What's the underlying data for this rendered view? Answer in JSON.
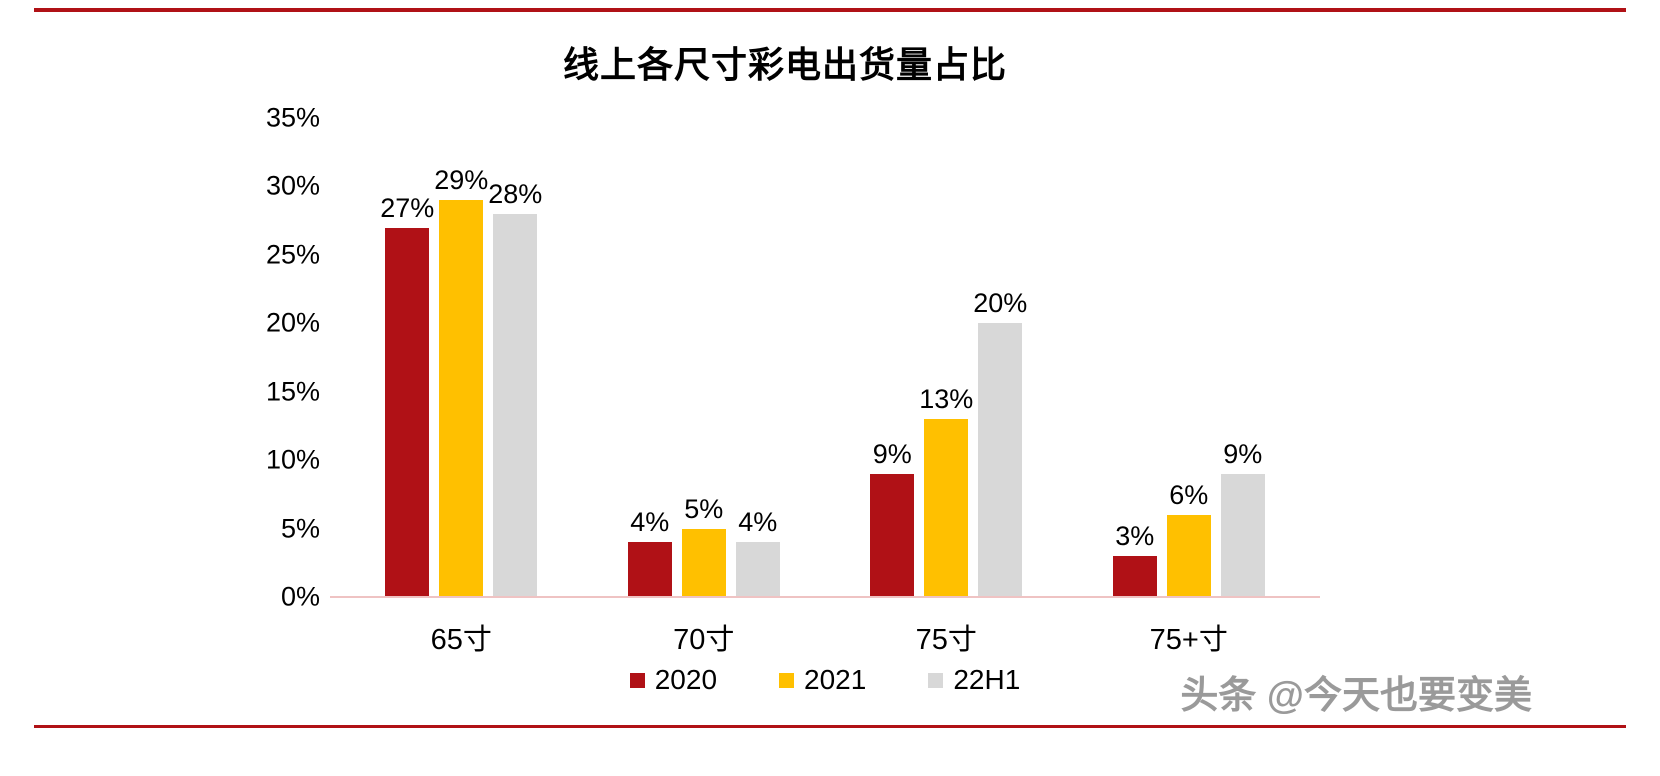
{
  "page": {
    "border_line_color": "#b01116",
    "background": "#ffffff"
  },
  "chart_data": {
    "type": "bar",
    "title": "线上各尺寸彩电出货量占比",
    "categories": [
      "65寸",
      "70寸",
      "75寸",
      "75+寸"
    ],
    "series": [
      {
        "name": "2020",
        "color": "#b01116",
        "values": [
          27,
          4,
          9,
          3
        ]
      },
      {
        "name": "2021",
        "color": "#ffc000",
        "values": [
          29,
          5,
          13,
          6
        ]
      },
      {
        "name": "22H1",
        "color": "#d8d8d8",
        "values": [
          28,
          4,
          20,
          9
        ]
      }
    ],
    "value_suffix": "%",
    "ylim": [
      0,
      35
    ],
    "ytick_step": 5,
    "yticks": [
      "0%",
      "5%",
      "10%",
      "15%",
      "20%",
      "25%",
      "30%",
      "35%"
    ],
    "grid": false,
    "legend_position": "bottom",
    "axis_line_color": "#efc3c3",
    "label_color": "#000000"
  },
  "watermark": {
    "text": "头条 @今天也要变美",
    "color": "#9a9a9a"
  }
}
